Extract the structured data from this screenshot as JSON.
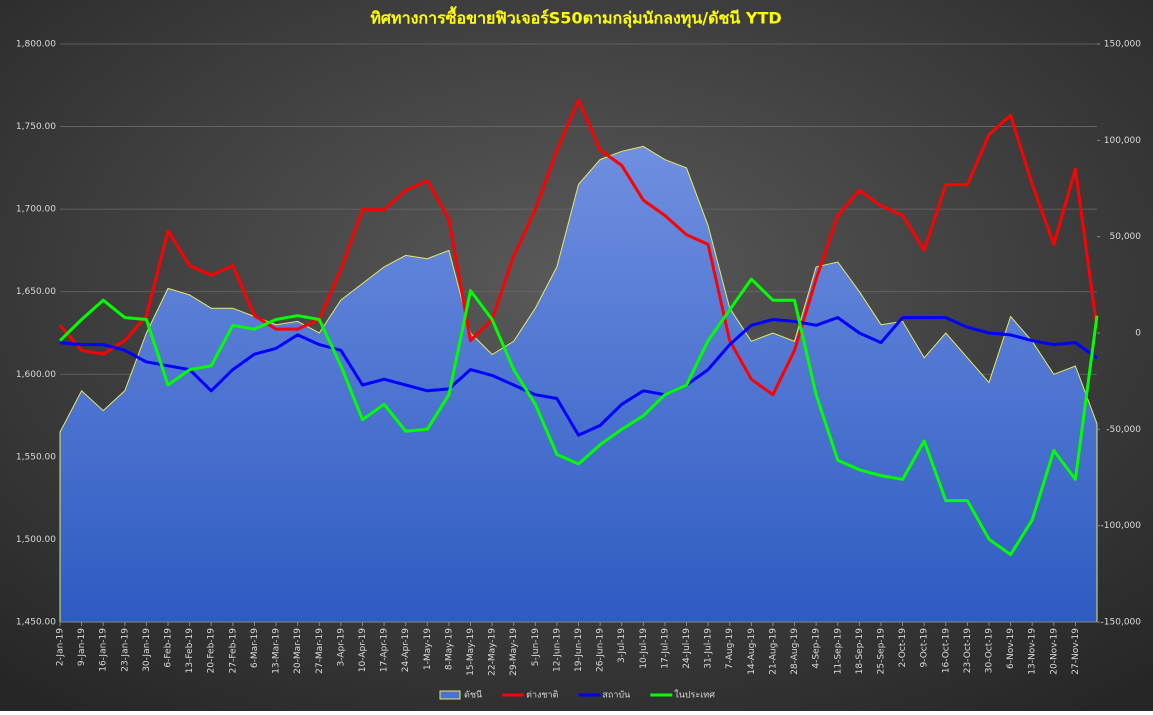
{
  "chart_data": {
    "type": "line",
    "title": "ทิศทางการซื้อขายฟิวเจอร์S50ตามกลุ่มนักลงทุน/ดัชนี YTD",
    "categories": [
      "2-Jan-19",
      "9-Jan-19",
      "16-Jan-19",
      "23-Jan-19",
      "30-Jan-19",
      "6-Feb-19",
      "13-Feb-19",
      "20-Feb-19",
      "27-Feb-19",
      "6-Mar-19",
      "13-Mar-19",
      "20-Mar-19",
      "27-Mar-19",
      "3-Apr-19",
      "10-Apr-19",
      "17-Apr-19",
      "24-Apr-19",
      "1-May-19",
      "8-May-19",
      "15-May-19",
      "22-May-19",
      "29-May-19",
      "5-Jun-19",
      "12-Jun-19",
      "19-Jun-19",
      "26-Jun-19",
      "3-Jul-19",
      "10-Jul-19",
      "17-Jul-19",
      "24-Jul-19",
      "31-Jul-19",
      "7-Aug-19",
      "14-Aug-19",
      "21-Aug-19",
      "28-Aug-19",
      "4-Sep-19",
      "11-Sep-19",
      "18-Sep-19",
      "25-Sep-19",
      "2-Oct-19",
      "9-Oct-19",
      "16-Oct-19",
      "23-Oct-19",
      "30-Oct-19",
      "6-Nov-19",
      "13-Nov-19",
      "20-Nov-19",
      "27-Nov-19",
      null
    ],
    "series": [
      {
        "name": "ดัชนี",
        "style": "area",
        "color": "#4a72d4",
        "edge_color": "#e8e860",
        "axis": "y",
        "values": [
          1565,
          1590,
          1578,
          1590,
          1625,
          1652,
          1648,
          1640,
          1640,
          1635,
          1630,
          1632,
          1625,
          1645,
          1655,
          1665,
          1672,
          1670,
          1675,
          1625,
          1612,
          1620,
          1640,
          1665,
          1715,
          1730,
          1735,
          1738,
          1730,
          1725,
          1690,
          1640,
          1620,
          1625,
          1620,
          1665,
          1668,
          1650,
          1630,
          1632,
          1610,
          1625,
          1610,
          1595,
          1635,
          1620,
          1600,
          1605,
          1570
        ]
      },
      {
        "name": "ต่างชาติ",
        "color": "#ff0000",
        "axis": "y2",
        "values": [
          4000,
          -9000,
          -11000,
          -4000,
          9000,
          53000,
          35000,
          30000,
          35000,
          9000,
          2000,
          2000,
          7000,
          33000,
          64000,
          64000,
          74000,
          79000,
          59000,
          -4000,
          7000,
          40000,
          64000,
          95000,
          121000,
          95000,
          87000,
          69000,
          61000,
          51000,
          46000,
          -4000,
          -24000,
          -32000,
          -9000,
          28000,
          61000,
          74000,
          66000,
          61000,
          43000,
          77000,
          77000,
          103000,
          113000,
          77000,
          46000,
          85000,
          2000
        ]
      },
      {
        "name": "สถาบัน",
        "color": "#0000ff",
        "axis": "y2",
        "values": [
          -5000,
          -6000,
          -6000,
          -9000,
          -15000,
          -17000,
          -19000,
          -30000,
          -19000,
          -11000,
          -8000,
          -1000,
          -6000,
          -9000,
          -27000,
          -24000,
          -27000,
          -30000,
          -29000,
          -19000,
          -22000,
          -27000,
          -32000,
          -34000,
          -53000,
          -48000,
          -37000,
          -30000,
          -32000,
          -27000,
          -19000,
          -6000,
          4000,
          7000,
          6000,
          4000,
          8000,
          0,
          -5000,
          8000,
          8000,
          8000,
          3000,
          0,
          -1000,
          -4000,
          -6000,
          -5000,
          -13000
        ]
      },
      {
        "name": "ในประเทศ",
        "color": "#00ff00",
        "axis": "y2",
        "values": [
          -4000,
          7000,
          17000,
          8000,
          7000,
          -27000,
          -19000,
          -17000,
          4000,
          2000,
          7000,
          9000,
          7000,
          -17000,
          -45000,
          -37000,
          -51000,
          -50000,
          -32000,
          22000,
          7000,
          -19000,
          -37000,
          -63000,
          -68000,
          -58000,
          -50000,
          -43000,
          -32000,
          -27000,
          -4000,
          12000,
          28000,
          17000,
          17000,
          -32000,
          -66000,
          -71000,
          -74000,
          -76000,
          -56000,
          -87000,
          -87000,
          -107000,
          -115000,
          -97000,
          -61000,
          -76000,
          9000
        ]
      }
    ],
    "ylim": [
      1450,
      1800
    ],
    "yticks": [
      {
        "value": 1450,
        "label": "1,450.00"
      },
      {
        "value": 1500,
        "label": "1,500.00"
      },
      {
        "value": 1550,
        "label": "1,550.00"
      },
      {
        "value": 1600,
        "label": "1,600.00"
      },
      {
        "value": 1650,
        "label": "1,650.00"
      },
      {
        "value": 1700,
        "label": "1,700.00"
      },
      {
        "value": 1750,
        "label": "1,750.00"
      },
      {
        "value": 1800,
        "label": "1,800.00"
      }
    ],
    "y2lim": [
      -150000,
      150000
    ],
    "y2ticks": [
      {
        "value": -150000,
        "label": "-150,000"
      },
      {
        "value": -100000,
        "label": "-100,000"
      },
      {
        "value": -50000,
        "label": "-50,000"
      },
      0,
      {
        "value": 50000,
        "label": "50,000"
      },
      {
        "value": 100000,
        "label": "100,000"
      },
      {
        "value": 150000,
        "label": "150,000"
      }
    ],
    "grid": true,
    "legend": "bottom"
  }
}
